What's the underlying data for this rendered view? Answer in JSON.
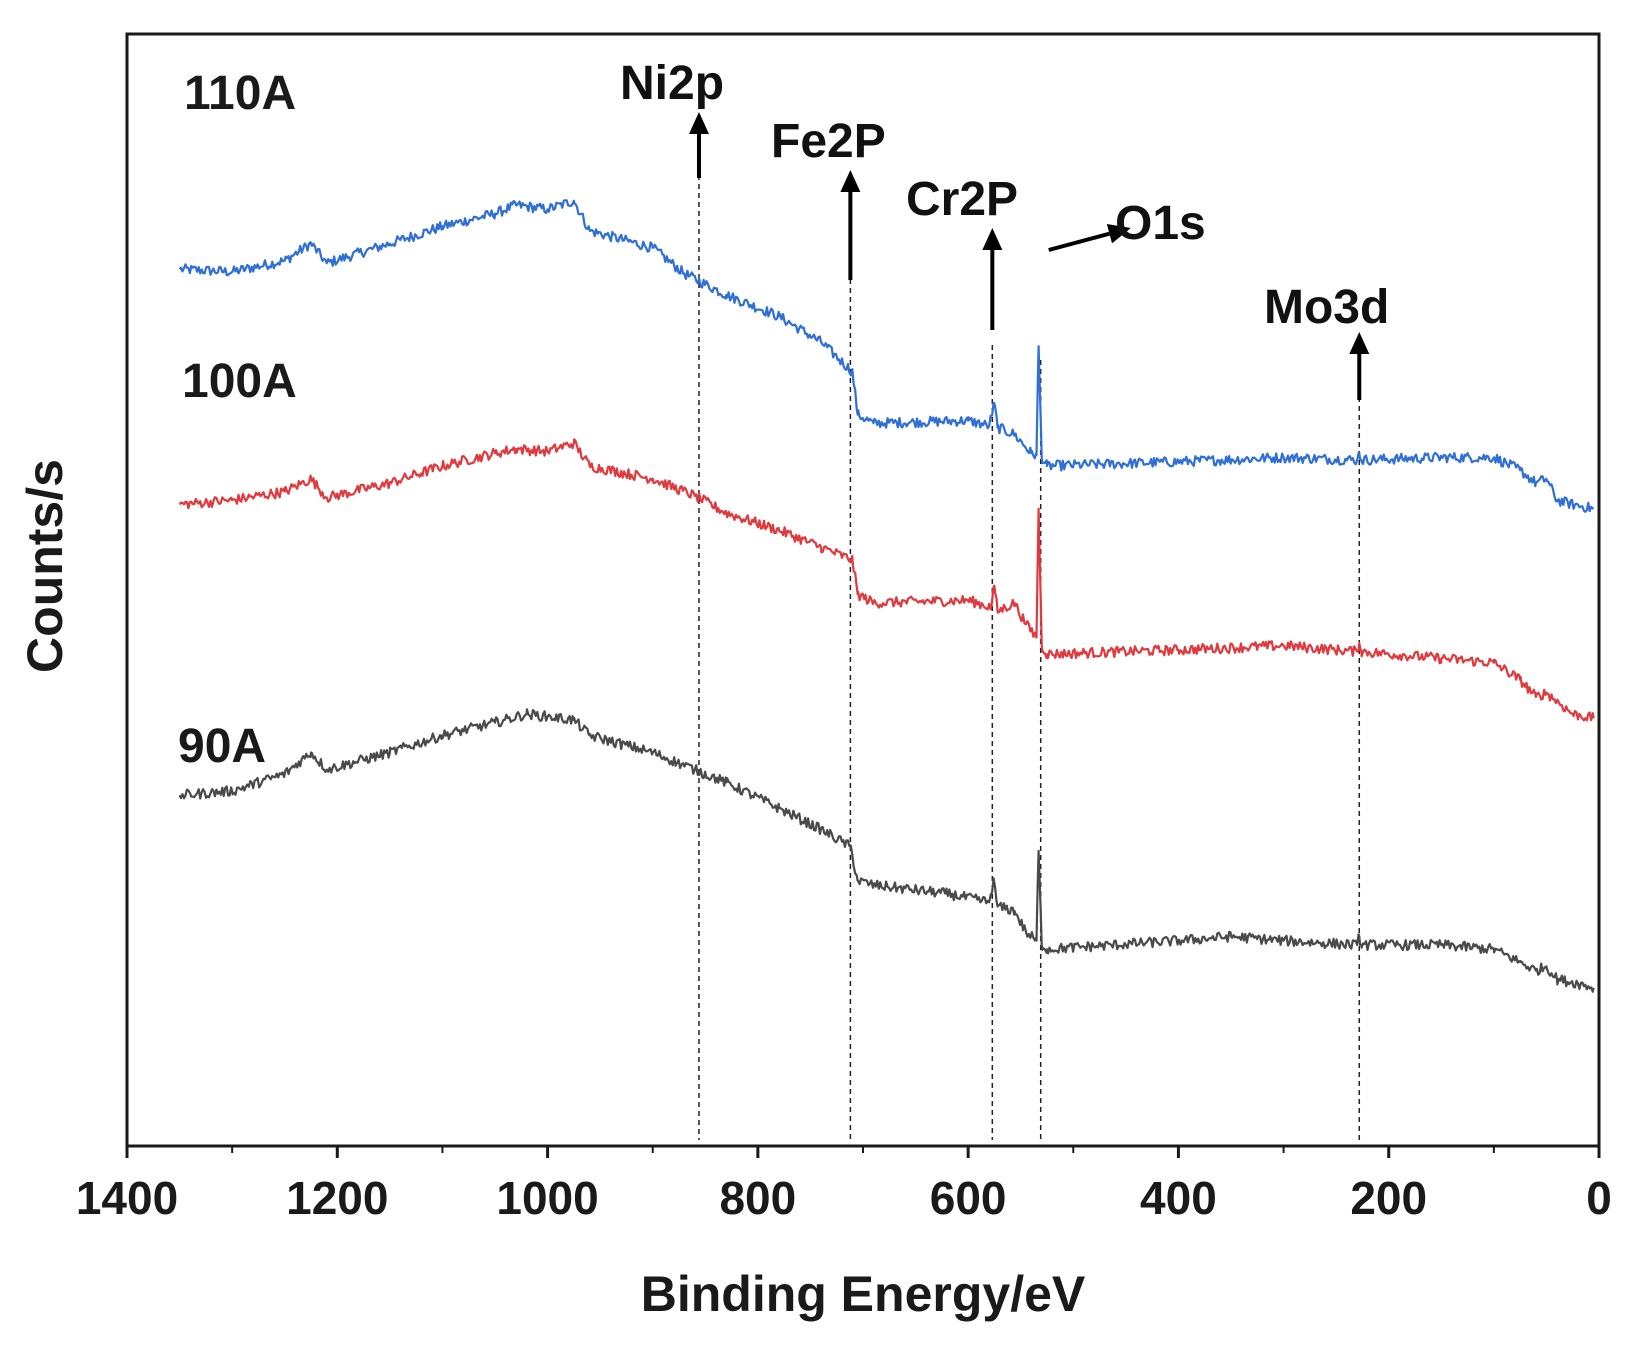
{
  "chart_data": {
    "type": "line",
    "title": "",
    "xlabel": "Binding Energy/eV",
    "ylabel": "Counts/s",
    "xlim": [
      1400,
      0
    ],
    "x_ticks": [
      "1400",
      "1200",
      "1000",
      "800",
      "600",
      "400",
      "200",
      "0"
    ],
    "x_tick_values": [
      1400,
      1200,
      1000,
      800,
      600,
      400,
      200,
      0
    ],
    "y_ticks_shown": false,
    "grid": false,
    "legend": "none (series labeled inline at left)",
    "series": [
      {
        "name": "110A",
        "color": "#2f6fd6",
        "keypoints": [
          [
            1350,
            6.75
          ],
          [
            1300,
            6.72
          ],
          [
            1250,
            6.85
          ],
          [
            1225,
            7.05
          ],
          [
            1210,
            6.82
          ],
          [
            1150,
            7.05
          ],
          [
            1100,
            7.25
          ],
          [
            1050,
            7.4
          ],
          [
            1030,
            7.5
          ],
          [
            1000,
            7.45
          ],
          [
            975,
            7.55
          ],
          [
            960,
            7.2
          ],
          [
            900,
            7.0
          ],
          [
            870,
            6.7
          ],
          [
            830,
            6.45
          ],
          [
            780,
            6.2
          ],
          [
            740,
            5.9
          ],
          [
            710,
            5.55
          ],
          [
            705,
            5.05
          ],
          [
            690,
            4.95
          ],
          [
            600,
            4.98
          ],
          [
            580,
            4.92
          ],
          [
            575,
            5.18
          ],
          [
            572,
            4.9
          ],
          [
            556,
            4.82
          ],
          [
            540,
            4.6
          ],
          [
            535,
            4.58
          ],
          [
            533,
            5.85
          ],
          [
            530,
            4.55
          ],
          [
            525,
            4.45
          ],
          [
            400,
            4.5
          ],
          [
            300,
            4.55
          ],
          [
            230,
            4.52
          ],
          [
            228,
            4.6
          ],
          [
            226,
            4.52
          ],
          [
            150,
            4.55
          ],
          [
            100,
            4.55
          ],
          [
            75,
            4.4
          ],
          [
            60,
            4.25
          ],
          [
            50,
            4.3
          ],
          [
            40,
            4.05
          ],
          [
            25,
            4.0
          ],
          [
            5,
            3.95
          ]
        ]
      },
      {
        "name": "100A",
        "color": "#e0393e",
        "keypoints": [
          [
            1350,
            4.0
          ],
          [
            1300,
            4.05
          ],
          [
            1250,
            4.15
          ],
          [
            1225,
            4.3
          ],
          [
            1210,
            4.08
          ],
          [
            1150,
            4.25
          ],
          [
            1100,
            4.45
          ],
          [
            1050,
            4.6
          ],
          [
            1030,
            4.65
          ],
          [
            1000,
            4.62
          ],
          [
            975,
            4.72
          ],
          [
            960,
            4.45
          ],
          [
            900,
            4.3
          ],
          [
            860,
            4.1
          ],
          [
            830,
            3.9
          ],
          [
            780,
            3.7
          ],
          [
            740,
            3.5
          ],
          [
            710,
            3.35
          ],
          [
            705,
            2.95
          ],
          [
            690,
            2.85
          ],
          [
            600,
            2.88
          ],
          [
            578,
            2.8
          ],
          [
            575,
            3.05
          ],
          [
            572,
            2.75
          ],
          [
            556,
            2.85
          ],
          [
            545,
            2.6
          ],
          [
            535,
            2.45
          ],
          [
            533,
            3.95
          ],
          [
            530,
            2.35
          ],
          [
            525,
            2.25
          ],
          [
            400,
            2.3
          ],
          [
            300,
            2.35
          ],
          [
            230,
            2.28
          ],
          [
            228,
            2.38
          ],
          [
            226,
            2.28
          ],
          [
            150,
            2.2
          ],
          [
            100,
            2.15
          ],
          [
            75,
            1.95
          ],
          [
            60,
            1.75
          ],
          [
            50,
            1.8
          ],
          [
            40,
            1.7
          ],
          [
            25,
            1.55
          ],
          [
            5,
            1.5
          ]
        ]
      },
      {
        "name": "90A",
        "color": "#4a4a4a",
        "keypoints": [
          [
            1350,
            0.6
          ],
          [
            1300,
            0.65
          ],
          [
            1250,
            0.85
          ],
          [
            1225,
            1.1
          ],
          [
            1210,
            0.9
          ],
          [
            1150,
            1.1
          ],
          [
            1100,
            1.3
          ],
          [
            1050,
            1.45
          ],
          [
            1020,
            1.55
          ],
          [
            1000,
            1.52
          ],
          [
            975,
            1.48
          ],
          [
            960,
            1.3
          ],
          [
            900,
            1.1
          ],
          [
            860,
            0.9
          ],
          [
            830,
            0.75
          ],
          [
            780,
            0.45
          ],
          [
            740,
            0.2
          ],
          [
            712,
            0.0
          ],
          [
            705,
            -0.4
          ],
          [
            690,
            -0.45
          ],
          [
            620,
            -0.55
          ],
          [
            580,
            -0.65
          ],
          [
            576,
            -0.4
          ],
          [
            572,
            -0.7
          ],
          [
            556,
            -0.75
          ],
          [
            545,
            -1.0
          ],
          [
            535,
            -1.1
          ],
          [
            533,
            -0.05
          ],
          [
            530,
            -1.15
          ],
          [
            525,
            -1.2
          ],
          [
            400,
            -1.1
          ],
          [
            350,
            -1.05
          ],
          [
            300,
            -1.1
          ],
          [
            230,
            -1.15
          ],
          [
            228,
            -1.05
          ],
          [
            226,
            -1.15
          ],
          [
            150,
            -1.15
          ],
          [
            100,
            -1.2
          ],
          [
            75,
            -1.35
          ],
          [
            60,
            -1.45
          ],
          [
            50,
            -1.4
          ],
          [
            40,
            -1.55
          ],
          [
            20,
            -1.6
          ],
          [
            5,
            -1.65
          ]
        ]
      }
    ],
    "peaks": [
      {
        "label": "Ni2p",
        "x": 856
      },
      {
        "label": "Fe2P",
        "x": 712
      },
      {
        "label": "Cr2P",
        "x": 577
      },
      {
        "label": "O1s",
        "x": 531
      },
      {
        "label": "Mo3d",
        "x": 228
      }
    ],
    "y_scale": [
      -3.5,
      9.5
    ]
  }
}
